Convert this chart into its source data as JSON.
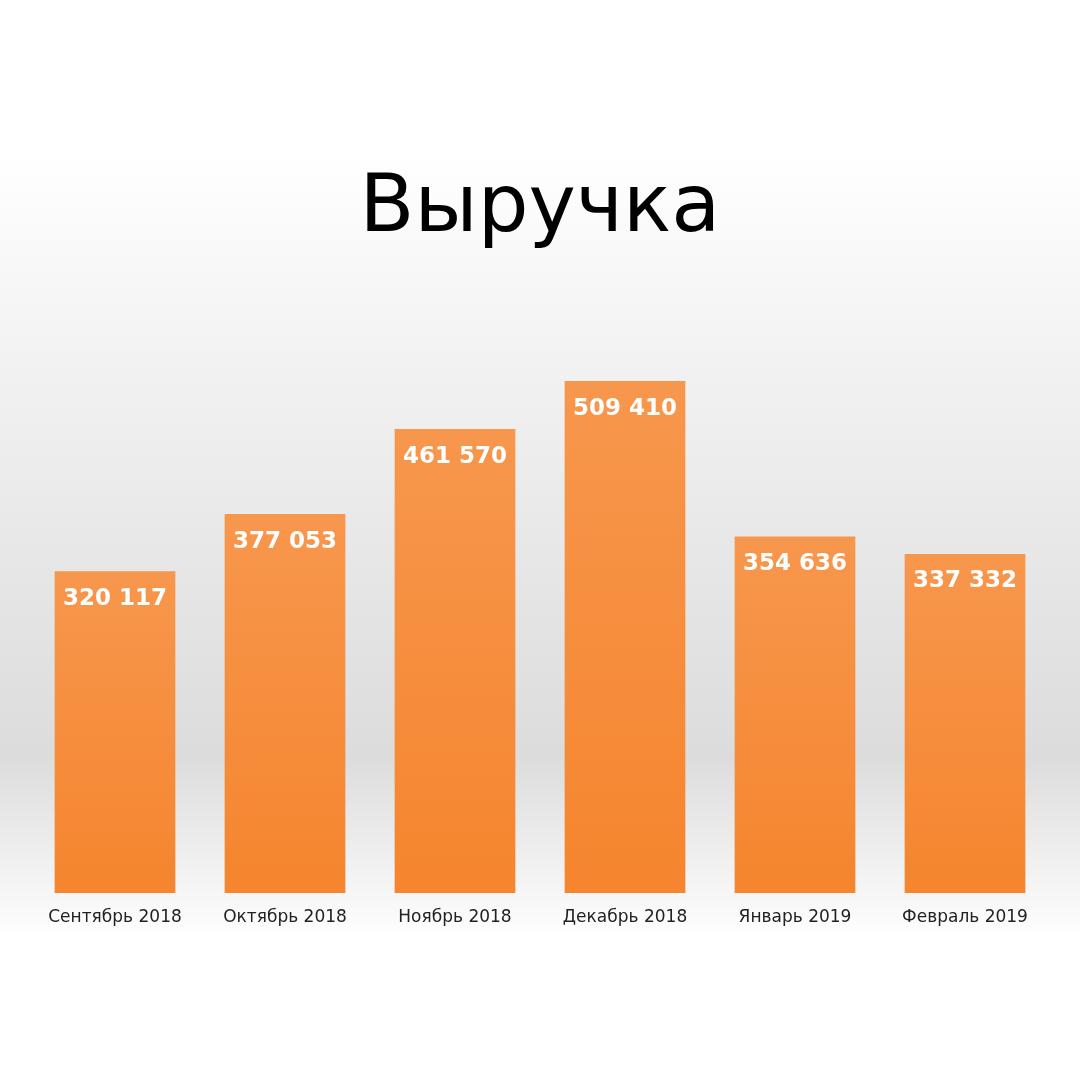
{
  "chart_data": {
    "type": "bar",
    "title": "Выручка",
    "categories": [
      "Сентябрь 2018",
      "Октябрь 2018",
      "Ноябрь 2018",
      "Декабрь 2018",
      "Январь 2019",
      "Февраль 2019"
    ],
    "values": [
      320117,
      377053,
      461570,
      509410,
      354636,
      337332
    ],
    "value_labels": [
      "320 117",
      "377 053",
      "461 570",
      "509 410",
      "354 636",
      "337 332"
    ],
    "color": "#f5852e"
  }
}
